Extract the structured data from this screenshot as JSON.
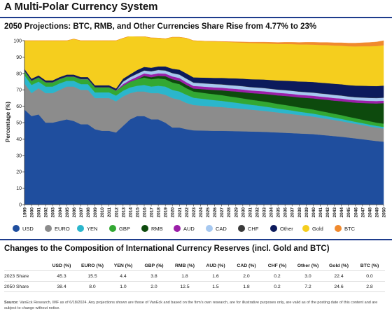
{
  "page_title": "A Multi-Polar Currency System",
  "chart_data": {
    "type": "area",
    "stacked": true,
    "title": "2050 Projections: BTC, RMB, and Other Currencies Share Rise from 4.77% to 23%",
    "ylabel": "Percentage (%)",
    "xlabel": "",
    "ylim": [
      0,
      100
    ],
    "yticks": [
      0,
      10,
      20,
      30,
      40,
      50,
      60,
      70,
      80,
      90,
      100
    ],
    "x": [
      "1999",
      "2000",
      "2001",
      "2002",
      "2003",
      "2004",
      "2005",
      "2006",
      "2007",
      "2008",
      "2009",
      "2010",
      "2011",
      "2012",
      "2013",
      "2014",
      "2015",
      "2016",
      "2017",
      "2018",
      "2019",
      "2020",
      "2021",
      "2022",
      "2023",
      "2024",
      "2025",
      "2026",
      "2027",
      "2028",
      "2029",
      "2030",
      "2031",
      "2032",
      "2033",
      "2034",
      "2035",
      "2036",
      "2037",
      "2038",
      "2039",
      "2040",
      "2041",
      "2042",
      "2043",
      "2044",
      "2045",
      "2046",
      "2047",
      "2048",
      "2049",
      "2050"
    ],
    "grid": false,
    "legend_position": "bottom",
    "series": [
      {
        "name": "USD",
        "color": "#1f4e9e",
        "values": [
          58,
          54,
          55,
          50,
          50,
          51,
          52,
          51,
          49,
          49,
          46,
          45,
          45,
          44,
          48,
          52,
          54,
          54,
          52,
          52,
          50,
          47,
          47,
          46,
          45.3,
          45.2,
          45.1,
          45,
          45,
          44.9,
          44.8,
          44.7,
          44.6,
          44.5,
          44.4,
          44.2,
          44,
          43.8,
          43.6,
          43.4,
          43.2,
          43,
          42.6,
          42.2,
          41.8,
          41.4,
          40.9,
          40.4,
          39.9,
          39.3,
          38.8,
          38.4
        ]
      },
      {
        "name": "EURO",
        "color": "#8c8c8c",
        "values": [
          16,
          14,
          16,
          18,
          18,
          19,
          20,
          21,
          21,
          21,
          19,
          20,
          20,
          19,
          18,
          16,
          15,
          15,
          16,
          16,
          17,
          18,
          17,
          16,
          15.5,
          15.2,
          15,
          14.7,
          14.5,
          14.2,
          14,
          13.7,
          13.4,
          13.1,
          12.8,
          12.5,
          12.2,
          11.9,
          11.6,
          11.3,
          11,
          10.7,
          10.4,
          10.1,
          9.8,
          9.5,
          9.2,
          8.9,
          8.7,
          8.4,
          8.2,
          8
        ]
      },
      {
        "name": "YEN",
        "color": "#2bb6cc",
        "values": [
          5,
          5,
          4,
          4,
          4,
          4,
          3.5,
          3.5,
          3.5,
          3.5,
          3.5,
          3.5,
          3.5,
          3.5,
          3.5,
          3.5,
          3.5,
          4,
          4,
          4.5,
          5,
          5,
          5,
          5,
          4.4,
          4.3,
          4.1,
          4,
          3.8,
          3.6,
          3.4,
          3.2,
          3,
          2.9,
          2.7,
          2.6,
          2.4,
          2.3,
          2.2,
          2,
          1.9,
          1.8,
          1.7,
          1.6,
          1.5,
          1.4,
          1.3,
          1.2,
          1.1,
          1.1,
          1,
          1
        ]
      },
      {
        "name": "GBP",
        "color": "#33a833",
        "values": [
          2.5,
          2.5,
          2.5,
          2.5,
          2.5,
          2.5,
          2.5,
          2.5,
          3,
          3,
          3,
          3,
          3,
          3,
          3,
          3.5,
          4,
          4.5,
          4.5,
          4.5,
          4.5,
          4.5,
          4.5,
          4,
          3.8,
          3.7,
          3.6,
          3.6,
          3.5,
          3.4,
          3.3,
          3.2,
          3.1,
          3,
          3,
          2.9,
          2.8,
          2.8,
          2.7,
          2.6,
          2.6,
          2.5,
          2.4,
          2.4,
          2.3,
          2.3,
          2.2,
          2.2,
          2.1,
          2.1,
          2,
          2
        ]
      },
      {
        "name": "RMB",
        "color": "#0d4a0d",
        "values": [
          0,
          0,
          0,
          0,
          0,
          0,
          0,
          0,
          0,
          0,
          0,
          0,
          0,
          0,
          0,
          0,
          0,
          1,
          1.2,
          1.5,
          1.8,
          2,
          2,
          2,
          1.8,
          2.1,
          2.4,
          2.6,
          2.9,
          3.2,
          3.5,
          3.8,
          4,
          4.3,
          4.6,
          4.9,
          5.2,
          5.5,
          5.8,
          6.1,
          6.4,
          6.8,
          7.2,
          7.6,
          8,
          8.5,
          9,
          9.5,
          10.2,
          10.9,
          11.7,
          12.5
        ]
      },
      {
        "name": "AUD",
        "color": "#9b1fa8",
        "values": [
          0,
          0,
          0,
          0,
          0,
          0,
          0,
          0,
          0,
          0,
          0,
          0,
          0,
          0,
          1,
          1,
          1.5,
          1.5,
          1.6,
          1.6,
          1.6,
          1.7,
          1.7,
          1.6,
          1.6,
          1.6,
          1.6,
          1.6,
          1.6,
          1.6,
          1.6,
          1.6,
          1.6,
          1.6,
          1.6,
          1.6,
          1.6,
          1.6,
          1.6,
          1.6,
          1.6,
          1.6,
          1.6,
          1.6,
          1.6,
          1.6,
          1.5,
          1.5,
          1.5,
          1.5,
          1.5,
          1.5
        ]
      },
      {
        "name": "CAD",
        "color": "#a6c8f0",
        "values": [
          0,
          0,
          0,
          0,
          0,
          0,
          0,
          0,
          0,
          0,
          0,
          0,
          0,
          0,
          1.5,
          1.7,
          1.8,
          1.8,
          2,
          2,
          1.9,
          2,
          2.1,
          2.2,
          2,
          2,
          2,
          2,
          2,
          2,
          2,
          2,
          2,
          2,
          2,
          1.9,
          1.9,
          1.9,
          1.9,
          1.9,
          1.9,
          1.9,
          1.9,
          1.9,
          1.9,
          1.8,
          1.8,
          1.8,
          1.8,
          1.8,
          1.8,
          1.8
        ]
      },
      {
        "name": "CHF",
        "color": "#3a3a3a",
        "values": [
          0.3,
          0.3,
          0.3,
          0.3,
          0.3,
          0.3,
          0.3,
          0.3,
          0.3,
          0.3,
          0.3,
          0.3,
          0.3,
          0.3,
          0.3,
          0.3,
          0.3,
          0.2,
          0.2,
          0.2,
          0.2,
          0.2,
          0.2,
          0.2,
          0.2,
          0.2,
          0.2,
          0.2,
          0.2,
          0.2,
          0.2,
          0.2,
          0.2,
          0.2,
          0.2,
          0.2,
          0.2,
          0.2,
          0.2,
          0.2,
          0.2,
          0.2,
          0.2,
          0.2,
          0.2,
          0.2,
          0.2,
          0.2,
          0.2,
          0.2,
          0.2,
          0.2
        ]
      },
      {
        "name": "Other",
        "color": "#0c1a5c",
        "values": [
          1,
          1,
          1,
          1,
          1,
          1,
          1,
          1,
          1,
          1,
          1,
          1,
          1,
          1,
          1.5,
          1.5,
          2,
          2,
          2,
          2,
          2.3,
          2.5,
          2.8,
          3,
          3,
          3.2,
          3.4,
          3.6,
          3.8,
          4,
          4.2,
          4.4,
          4.6,
          4.8,
          5,
          5.2,
          5.4,
          5.6,
          5.8,
          6,
          6.2,
          6.3,
          6.4,
          6.5,
          6.6,
          6.7,
          6.8,
          6.9,
          7,
          7.1,
          7.1,
          7.2
        ]
      },
      {
        "name": "Gold",
        "color": "#f5ce1e",
        "values": [
          17.2,
          23.2,
          21.2,
          24.2,
          24.2,
          22.2,
          20.7,
          21.7,
          22.2,
          22.2,
          27.2,
          27.2,
          27.2,
          29.2,
          24.7,
          23.3,
          20.4,
          18.5,
          18.2,
          17.3,
          16.9,
          19.2,
          19.8,
          21.5,
          22.4,
          22.3,
          22.2,
          22.2,
          22.1,
          22.1,
          22,
          22,
          22.1,
          22.1,
          22.1,
          22.2,
          22.3,
          22.4,
          22.5,
          22.6,
          22.7,
          22.8,
          23,
          23.2,
          23.3,
          23.5,
          23.7,
          23.9,
          24.1,
          24.2,
          24.4,
          24.6
        ]
      },
      {
        "name": "BTC",
        "color": "#f08a2e",
        "values": [
          0,
          0,
          0,
          0,
          0,
          0,
          0,
          0,
          0,
          0,
          0,
          0,
          0,
          0,
          0,
          0,
          0,
          0,
          0,
          0,
          0,
          0,
          0,
          0,
          0,
          0,
          0,
          0.1,
          0.1,
          0.2,
          0.3,
          0.4,
          0.5,
          0.6,
          0.7,
          0.8,
          0.9,
          1,
          1.1,
          1.2,
          1.3,
          1.4,
          1.5,
          1.6,
          1.7,
          1.8,
          1.9,
          2,
          2.1,
          2.3,
          2.5,
          2.8
        ]
      }
    ]
  },
  "table": {
    "title": "Changes to the Composition of International Currency Reserves (incl. Gold and BTC)",
    "headers": [
      "",
      "USD (%)",
      "EURO (%)",
      "YEN (%)",
      "GBP (%)",
      "RMB (%)",
      "AUD (%)",
      "CAD (%)",
      "CHF (%)",
      "Other (%)",
      "Gold (%)",
      "BTC (%)"
    ],
    "rows": [
      [
        "2023 Share",
        "45.3",
        "15.5",
        "4.4",
        "3.8",
        "1.8",
        "1.6",
        "2.0",
        "0.2",
        "3.0",
        "22.4",
        "0.0"
      ],
      [
        "2050 Share",
        "38.4",
        "8.0",
        "1.0",
        "2.0",
        "12.5",
        "1.5",
        "1.8",
        "0.2",
        "7.2",
        "24.6",
        "2.8"
      ]
    ]
  },
  "source_note": {
    "label": "Source:",
    "text": "VanEck Research, IMF as of 6/18/2024. Any projections shown are those of VanEck and based on the firm's own research, are for illustrative purposes only, are valid as of the posting date of this content and are subject to change without notice."
  }
}
